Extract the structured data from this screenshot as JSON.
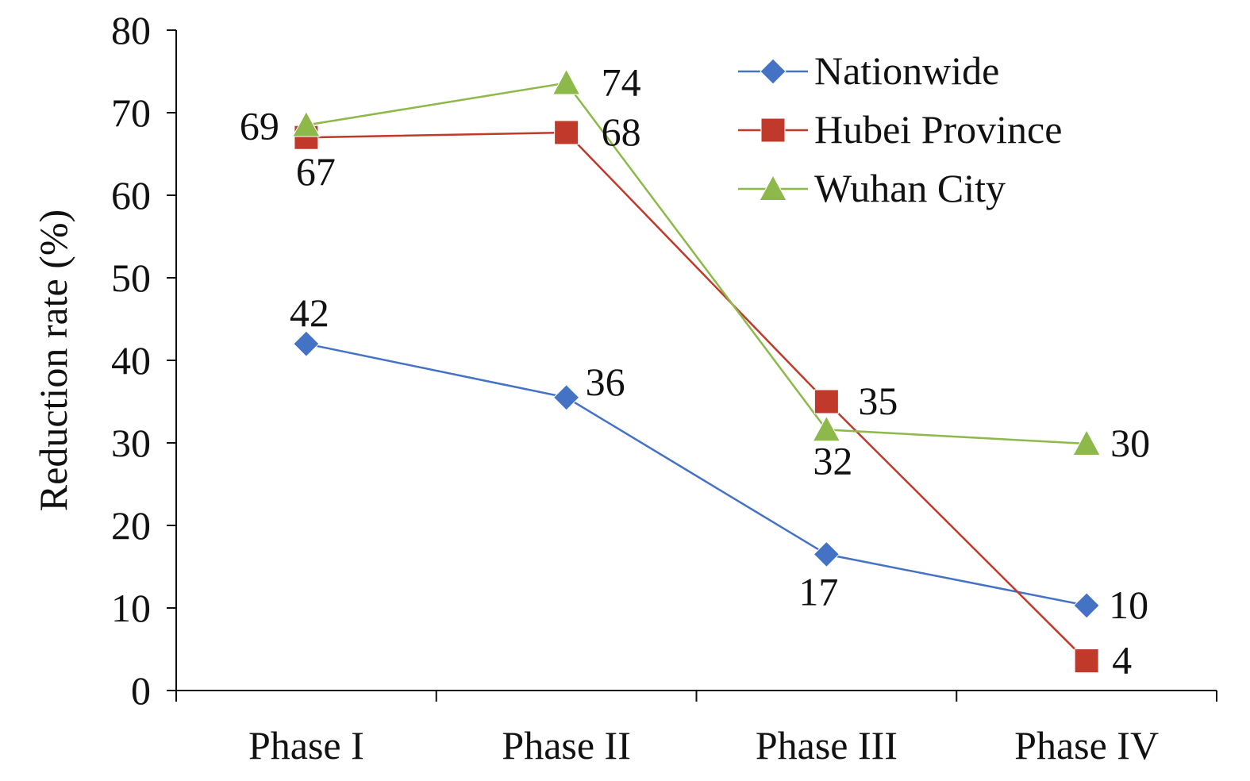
{
  "chart_data": {
    "type": "line",
    "title": "",
    "xlabel": "",
    "ylabel": "Reduction rate (%)",
    "ylim": [
      0,
      80
    ],
    "yticks": [
      0,
      10,
      20,
      30,
      40,
      50,
      60,
      70,
      80
    ],
    "ytick_labels": [
      "0",
      "10",
      "20",
      "30",
      "40",
      "50",
      "60",
      "70",
      "80"
    ],
    "categories": [
      "Phase I",
      "Phase II",
      "Phase III",
      "Phase IV"
    ],
    "grid": false,
    "legend_position": "top-right",
    "series": [
      {
        "name": "Nationwide",
        "color": "#4472C4",
        "marker": "diamond",
        "values": [
          42,
          35.5,
          16.5,
          10.3
        ],
        "labels": [
          "42",
          "36",
          "17",
          "10"
        ]
      },
      {
        "name": "Hubei Province",
        "color": "#C0392B",
        "marker": "square",
        "values": [
          67,
          67.6,
          35,
          3.6
        ],
        "labels": [
          "67",
          "68",
          "35",
          "4"
        ]
      },
      {
        "name": "Wuhan City",
        "color": "#8DB94B",
        "marker": "triangle",
        "values": [
          68.5,
          73.6,
          31.6,
          29.9
        ],
        "labels": [
          "69",
          "74",
          "32",
          "30"
        ]
      }
    ]
  }
}
